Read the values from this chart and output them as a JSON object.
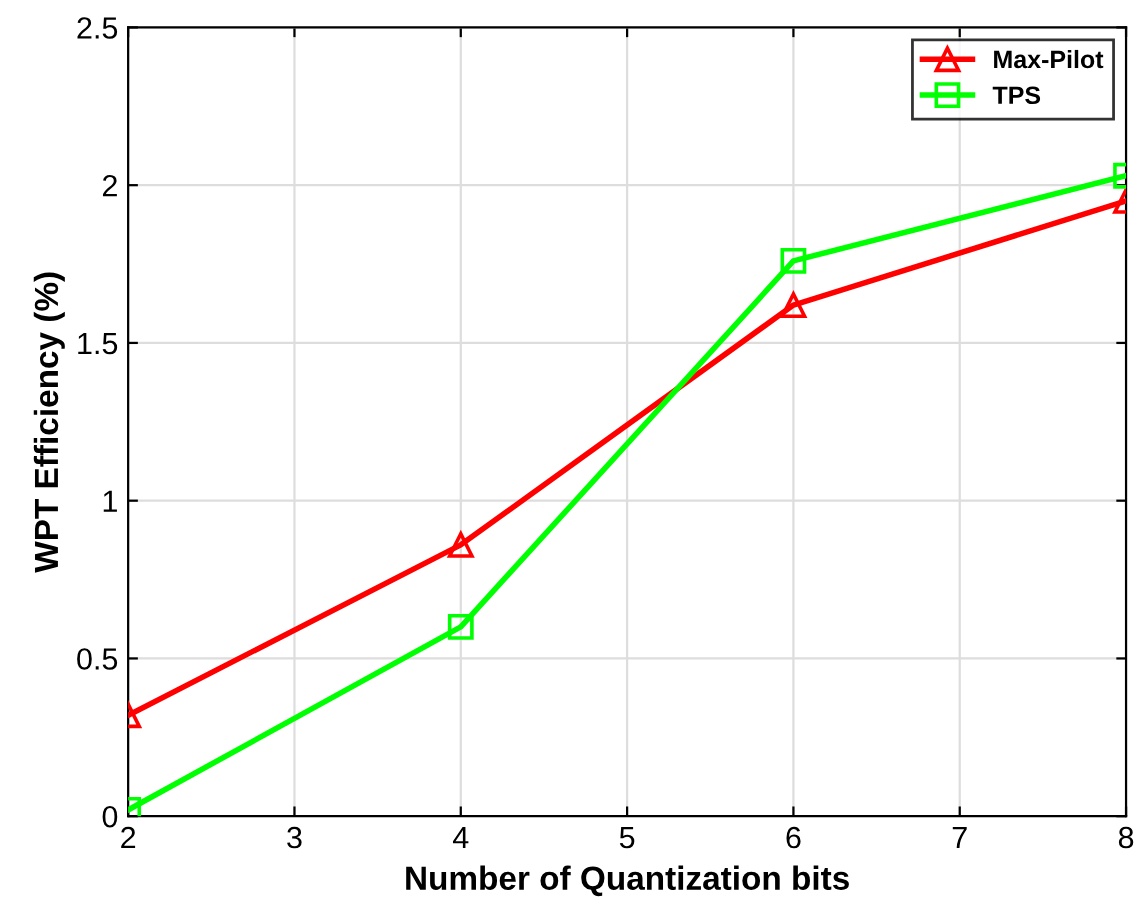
{
  "chart_data": {
    "type": "line",
    "xlabel": "Number of Quantization bits",
    "ylabel": "WPT Efficiency (%)",
    "x": [
      2,
      4,
      6,
      8
    ],
    "series": [
      {
        "name": "Max-Pilot",
        "color": "#ff0000",
        "marker": "triangle",
        "values": [
          0.32,
          0.86,
          1.62,
          1.95
        ]
      },
      {
        "name": "TPS",
        "color": "#00ff00",
        "marker": "square",
        "values": [
          0.02,
          0.6,
          1.76,
          2.03
        ]
      }
    ],
    "xlim": [
      2,
      8
    ],
    "xticks": [
      2,
      3,
      4,
      5,
      6,
      7,
      8
    ],
    "ylim": [
      0,
      2.5
    ],
    "yticks": [
      0,
      0.5,
      1,
      1.5,
      2,
      2.5
    ],
    "grid": true,
    "legend": "top right",
    "line_style": "solid"
  }
}
